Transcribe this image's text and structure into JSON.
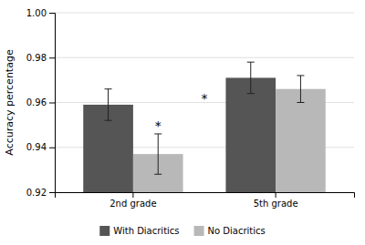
{
  "chart_data": {
    "type": "bar",
    "categories": [
      "2nd grade",
      "5th grade"
    ],
    "series": [
      {
        "name": "With Diacritics",
        "color": "#555555",
        "values": [
          0.959,
          0.971
        ],
        "errors": [
          0.007,
          0.007
        ]
      },
      {
        "name": "No Diacritics",
        "color": "#b8b8b8",
        "values": [
          0.937,
          0.966
        ],
        "errors": [
          0.009,
          0.006
        ]
      }
    ],
    "ylabel": "Accuracy percentage",
    "ylim": [
      0.92,
      1.0
    ],
    "yticks": [
      0.92,
      0.94,
      0.96,
      0.98,
      {
        "value": 1.0,
        "label": "1.00"
      }
    ],
    "grid": true,
    "legend": "bottom",
    "annotations": [
      {
        "text": "*",
        "category": "2nd grade"
      },
      {
        "text": "*",
        "category": "5th grade"
      }
    ]
  }
}
